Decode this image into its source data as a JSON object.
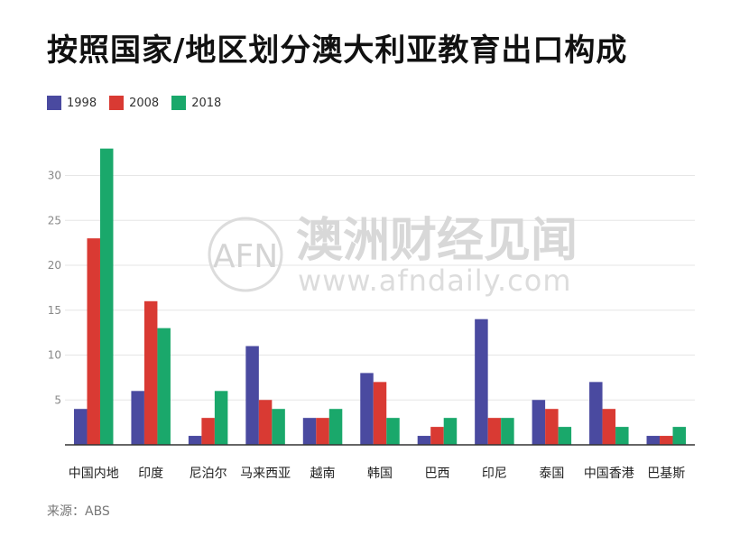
{
  "title": "按照国家/地区划分澳大利亚教育出口构成",
  "source": "来源：ABS",
  "watermark": {
    "logo": "AFN",
    "name": "澳洲财经见闻",
    "url": "www.afndaily.com"
  },
  "chart_data": {
    "type": "bar",
    "title": "按照国家/地区划分澳大利亚教育出口构成",
    "xlabel": "",
    "ylabel": "",
    "ylim": [
      0,
      35
    ],
    "yticks": [
      5,
      10,
      15,
      20,
      25,
      30
    ],
    "grid": true,
    "legend_position": "top-left",
    "categories": [
      "中国内地",
      "印度",
      "尼泊尔",
      "马来西亚",
      "越南",
      "韩国",
      "巴西",
      "印尼",
      "泰国",
      "中国香港",
      "巴基斯"
    ],
    "series": [
      {
        "name": "1998",
        "color": "#4a4aa0",
        "values": [
          4,
          6,
          1,
          11,
          3,
          8,
          1,
          14,
          5,
          7,
          1
        ]
      },
      {
        "name": "2008",
        "color": "#d93a33",
        "values": [
          23,
          16,
          3,
          5,
          3,
          7,
          2,
          3,
          4,
          4,
          1
        ]
      },
      {
        "name": "2018",
        "color": "#1aa86b",
        "values": [
          33,
          13,
          6,
          4,
          4,
          3,
          3,
          3,
          2,
          2,
          2
        ]
      }
    ]
  }
}
